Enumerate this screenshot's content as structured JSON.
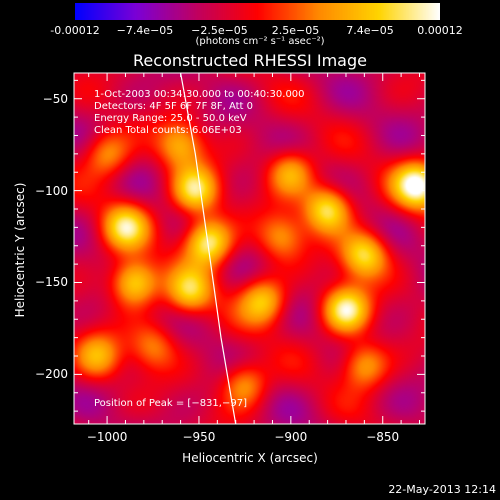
{
  "colorbar": {
    "tick_labels": [
      "-0.00012",
      "−7.4e−05",
      "−2.5e−05",
      "2.5e−05",
      "7.4e−05",
      "0.00012"
    ],
    "tick_values": [
      -0.00012,
      -7.4e-05,
      -2.5e-05,
      2.5e-05,
      7.4e-05,
      0.00012
    ],
    "range": [
      -0.00012,
      0.00012
    ],
    "unit_label": "(photons cm⁻² s⁻¹ asec⁻²)",
    "colors": [
      "#0000ff",
      "#7b00d6",
      "#c00060",
      "#ff0000",
      "#ff8800",
      "#ffd400",
      "#ffffff"
    ]
  },
  "chart_data": {
    "type": "heatmap",
    "title": "Reconstructed RHESSI Image",
    "xlabel": "Heliocentric X (arcsec)",
    "ylabel": "Heliocentric Y (arcsec)",
    "xlim": [
      -1018,
      -827
    ],
    "ylim": [
      -227,
      -36
    ],
    "x_ticks": [
      -1000,
      -950,
      -900,
      -850
    ],
    "x_tick_labels": [
      "−1000",
      "−950",
      "−900",
      "−850"
    ],
    "y_ticks": [
      -50,
      -100,
      -150,
      -200
    ],
    "y_tick_labels": [
      "−50",
      "−100",
      "−150",
      "−200"
    ],
    "info_lines": [
      "1-Oct-2003 00:34:30.000 to 00:40:30.000",
      "Detectors: 4F 5F 6F 7F 8F, Att 0",
      "Energy Range: 25.0 - 50.0 keV",
      "Clean    Total counts: 6.06E+03"
    ],
    "peak_label": "Position of Peak = [−831,−97]",
    "peak_position": [
      -831,
      -97
    ],
    "limb_curve": {
      "x": [
        -960,
        -952,
        -945,
        -938,
        -930
      ],
      "y": [
        -36,
        -80,
        -130,
        -180,
        -227
      ]
    },
    "bright_sources": [
      {
        "x": -831,
        "y": -97,
        "amp": 1.0
      },
      {
        "x": -945,
        "y": -128,
        "amp": 0.95
      },
      {
        "x": -952,
        "y": -100,
        "amp": 0.8
      },
      {
        "x": -880,
        "y": -110,
        "amp": 0.85
      },
      {
        "x": -860,
        "y": -135,
        "amp": 0.8
      },
      {
        "x": -990,
        "y": -120,
        "amp": 0.75
      },
      {
        "x": -985,
        "y": -150,
        "amp": 0.85
      },
      {
        "x": -955,
        "y": -155,
        "amp": 0.7
      },
      {
        "x": -915,
        "y": -160,
        "amp": 0.7
      },
      {
        "x": -870,
        "y": -165,
        "amp": 0.9
      },
      {
        "x": -1000,
        "y": -80,
        "amp": 0.55
      },
      {
        "x": -960,
        "y": -75,
        "amp": 0.6
      },
      {
        "x": -900,
        "y": -90,
        "amp": 0.6
      },
      {
        "x": -1005,
        "y": -190,
        "amp": 0.55
      },
      {
        "x": -925,
        "y": -205,
        "amp": 0.55
      },
      {
        "x": -860,
        "y": -195,
        "amp": 0.6
      },
      {
        "x": -905,
        "y": -125,
        "amp": 0.5
      },
      {
        "x": -975,
        "y": -185,
        "amp": 0.45
      }
    ]
  },
  "footer": {
    "date": "22-May-2013 12:14"
  }
}
